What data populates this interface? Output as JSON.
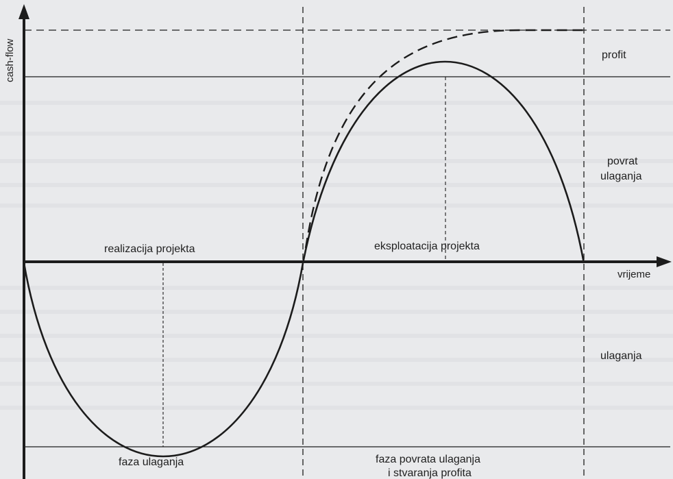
{
  "axes": {
    "y_label": "cash-flow",
    "x_label": "vrijeme"
  },
  "phase_labels": {
    "realization": "realizacija projekta",
    "exploitation": "eksploatacija projekta"
  },
  "region_labels": {
    "profit": "profit",
    "return_line1": "povrat",
    "return_line2": "ulaganja",
    "investment": "ulaganja"
  },
  "bottom_labels": {
    "investment_phase": "faza ulaganja",
    "return_phase_line1": "faza povrata ulaganja",
    "return_phase_line2": "i stvaranja profita"
  },
  "colors": {
    "background": "#e9eaec",
    "ink": "#1c1c1c"
  }
}
